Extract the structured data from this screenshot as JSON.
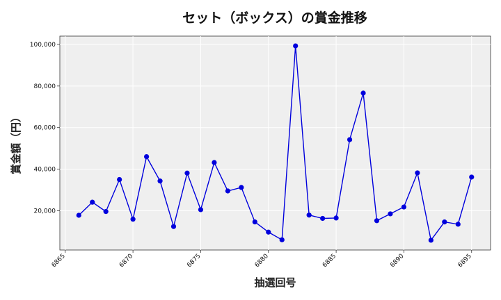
{
  "chart_data": {
    "type": "line",
    "title": "セット（ボックス）の賞金推移",
    "xlabel": "抽選回号",
    "ylabel": "賞金額（円）",
    "x": [
      6866,
      6867,
      6868,
      6869,
      6870,
      6871,
      6872,
      6873,
      6874,
      6875,
      6876,
      6877,
      6878,
      6879,
      6880,
      6881,
      6882,
      6883,
      6884,
      6885,
      6886,
      6887,
      6888,
      6889,
      6890,
      6891,
      6892,
      6893,
      6894,
      6895
    ],
    "series": [
      {
        "values": [
          17800,
          24100,
          19600,
          35000,
          15900,
          46000,
          34300,
          12400,
          38100,
          20500,
          43200,
          29500,
          31200,
          14600,
          9700,
          6000,
          99300,
          17900,
          16300,
          16500,
          54200,
          76600,
          15200,
          18500,
          21800,
          38200,
          5800,
          14600,
          13500,
          36200
        ]
      }
    ],
    "xlim": [
      6864.6,
      6896.4
    ],
    "ylim": [
      1100,
      104000
    ],
    "xticks": [
      6865,
      6870,
      6875,
      6880,
      6885,
      6890,
      6895
    ],
    "yticks": [
      20000,
      40000,
      60000,
      80000,
      100000
    ],
    "ytick_labels": [
      "20,000",
      "40,000",
      "60,000",
      "80,000",
      "100,000"
    ],
    "grid": true,
    "colors": {
      "line": "#0000dd",
      "marker": "#0000dd",
      "plot_bg": "#efefef",
      "grid": "#ffffff"
    }
  }
}
